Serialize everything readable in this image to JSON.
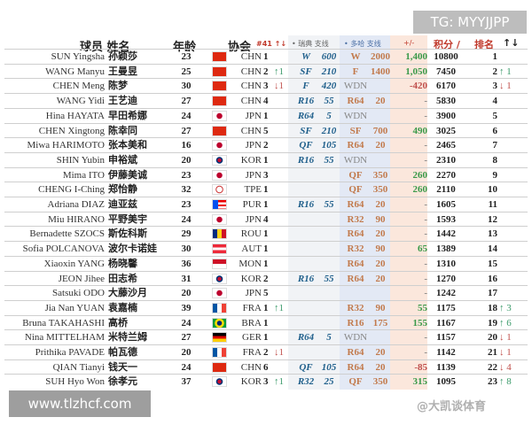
{
  "watermarks": {
    "top_right": "TG: MYYJJPP",
    "bottom_left": "www.tlzhcf.com",
    "overlay": "@大凯谈体育"
  },
  "colors": {
    "swedish_bg": "#f1f3f6",
    "doha_bg": "#e3e9f5",
    "diff_bg": "#fbe7dc",
    "up": "#3a9a6a",
    "down": "#c0504d",
    "header_red": "#c0392b"
  },
  "header": {
    "player": "球员 姓名",
    "age": "年龄",
    "assoc": "协会",
    "assoc_rank": "#41 ↑↓",
    "swedish": "• 瑞典 支线",
    "doha": "• 多哈 支线",
    "diff": "+/-",
    "points": "积分 /",
    "rank": "排名",
    "rank_change": "↑↓"
  },
  "rows": [
    [
      "SUN Yingsha",
      "孙颖莎",
      "23",
      "CHN",
      "CHN",
      "1",
      "",
      "W",
      "600",
      "W",
      "2000",
      "1,400",
      "10800",
      "1",
      ""
    ],
    [
      "WANG Manyu",
      "王曼昱",
      "25",
      "CHN",
      "CHN",
      "2",
      "↑1",
      "SF",
      "210",
      "F",
      "1400",
      "1,050",
      "7450",
      "2",
      "↑ 1"
    ],
    [
      "CHEN Meng",
      "陈梦",
      "30",
      "CHN",
      "CHN",
      "3",
      "↓1",
      "F",
      "420",
      "WDN",
      "",
      "-420",
      "6170",
      "3",
      "↓ 1"
    ],
    [
      "WANG Yidi",
      "王艺迪",
      "27",
      "CHN",
      "CHN",
      "4",
      "",
      "R16",
      "55",
      "R64",
      "20",
      "-",
      "5830",
      "4",
      ""
    ],
    [
      "Hina HAYATA",
      "早田希娜",
      "24",
      "JPN",
      "JPN",
      "1",
      "",
      "R64",
      "5",
      "WDN",
      "",
      "-",
      "3900",
      "5",
      ""
    ],
    [
      "CHEN Xingtong",
      "陈幸同",
      "27",
      "CHN",
      "CHN",
      "5",
      "",
      "SF",
      "210",
      "SF",
      "700",
      "490",
      "3025",
      "6",
      ""
    ],
    [
      "Miwa HARIMOTO",
      "张本美和",
      "16",
      "JPN",
      "JPN",
      "2",
      "",
      "QF",
      "105",
      "R64",
      "20",
      "-",
      "2465",
      "7",
      ""
    ],
    [
      "SHIN Yubin",
      "申裕斌",
      "20",
      "KOR",
      "KOR",
      "1",
      "",
      "R16",
      "55",
      "WDN",
      "",
      "-",
      "2310",
      "8",
      ""
    ],
    [
      "Mima ITO",
      "伊藤美诚",
      "23",
      "JPN",
      "JPN",
      "3",
      "",
      "",
      "",
      "QF",
      "350",
      "260",
      "2270",
      "9",
      ""
    ],
    [
      "CHENG I-Ching",
      "郑怡静",
      "32",
      "TPE",
      "TPE",
      "1",
      "",
      "",
      "",
      "QF",
      "350",
      "260",
      "2110",
      "10",
      ""
    ],
    [
      "Adriana DIAZ",
      "迪亚兹",
      "23",
      "PUR",
      "PUR",
      "1",
      "",
      "R16",
      "55",
      "R64",
      "20",
      "-",
      "1605",
      "11",
      ""
    ],
    [
      "Miu HIRANO",
      "平野美宇",
      "24",
      "JPN",
      "JPN",
      "4",
      "",
      "",
      "",
      "R32",
      "90",
      "-",
      "1593",
      "12",
      ""
    ],
    [
      "Bernadette SZOCS",
      "斯佐科斯",
      "29",
      "ROU",
      "ROU",
      "1",
      "",
      "",
      "",
      "R64",
      "20",
      "-",
      "1442",
      "13",
      ""
    ],
    [
      "Sofia POLCANOVA",
      "波尔卡诺娃",
      "30",
      "AUT",
      "AUT",
      "1",
      "",
      "",
      "",
      "R32",
      "90",
      "65",
      "1389",
      "14",
      ""
    ],
    [
      "Xiaoxin YANG",
      "杨晓馨",
      "36",
      "MON",
      "MON",
      "1",
      "",
      "",
      "",
      "R64",
      "20",
      "-",
      "1310",
      "15",
      ""
    ],
    [
      "JEON Jihee",
      "田志希",
      "31",
      "KOR",
      "KOR",
      "2",
      "",
      "R16",
      "55",
      "R64",
      "20",
      "-",
      "1270",
      "16",
      ""
    ],
    [
      "Satsuki ODO",
      "大藤沙月",
      "20",
      "JPN",
      "JPN",
      "5",
      "",
      "",
      "",
      "",
      "",
      "-",
      "1242",
      "17",
      ""
    ],
    [
      "Jia Nan YUAN",
      "袁嘉楠",
      "39",
      "FRA",
      "FRA",
      "1",
      "↑1",
      "",
      "",
      "R32",
      "90",
      "55",
      "1175",
      "18",
      "↑ 3"
    ],
    [
      "Bruna TAKAHASHI",
      "高桥",
      "24",
      "BRA",
      "BRA",
      "1",
      "",
      "",
      "",
      "R16",
      "175",
      "155",
      "1167",
      "19",
      "↑ 6"
    ],
    [
      "Nina MITTELHAM",
      "米特兰姆",
      "27",
      "GER",
      "GER",
      "1",
      "",
      "R64",
      "5",
      "WDN",
      "",
      "-",
      "1157",
      "20",
      "↓ 1"
    ],
    [
      "Prithika PAVADE",
      "帕瓦德",
      "20",
      "FRA",
      "FRA",
      "2",
      "↓1",
      "",
      "",
      "R64",
      "20",
      "-",
      "1142",
      "21",
      "↓ 1"
    ],
    [
      "QIAN Tianyi",
      "钱天一",
      "24",
      "CHN",
      "CHN",
      "6",
      "",
      "QF",
      "105",
      "R64",
      "20",
      "-85",
      "1139",
      "22",
      "↓ 4"
    ],
    [
      "SUH Hyo Won",
      "徐孝元",
      "37",
      "KOR",
      "KOR",
      "3",
      "↑1",
      "R32",
      "25",
      "QF",
      "350",
      "315",
      "1095",
      "23",
      "↑ 8"
    ]
  ]
}
